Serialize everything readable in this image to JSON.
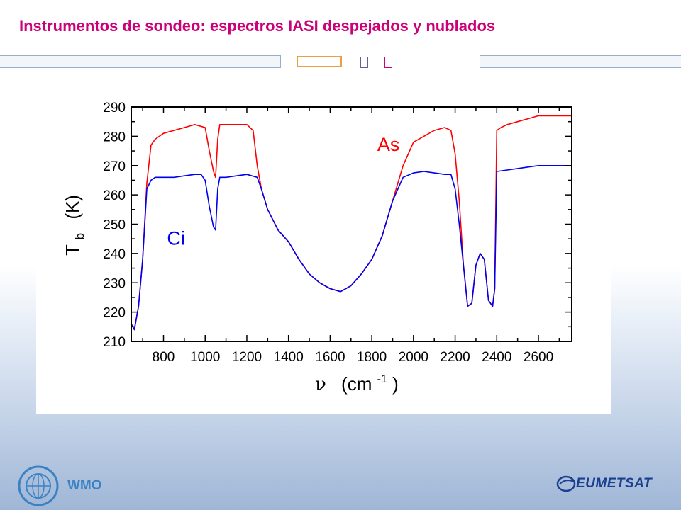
{
  "header": {
    "title": "Instrumentos de sondeo: espectros IASI despejados y nublados"
  },
  "footer": {
    "left_logo": "wmo-emblem-icon",
    "left_text": "WMO",
    "right_logo": "eumetsat-logo-icon",
    "right_text": "EUMETSAT"
  },
  "colors": {
    "title": "#cc0077",
    "as_series": "#ff0000",
    "ci_series": "#0000ee"
  },
  "chart_data": {
    "type": "line",
    "title": "",
    "xlabel": "ν",
    "xlabel_unit": "(cm",
    "xlabel_unit_exp": "-1",
    "xlabel_unit_close": ")",
    "ylabel": "T",
    "ylabel_sub": "b",
    "ylabel_unit": "(K)",
    "xlim": [
      645,
      2760
    ],
    "ylim": [
      210,
      290
    ],
    "xticks": [
      "800",
      "1000",
      "1200",
      "1400",
      "1600",
      "1800",
      "2000",
      "2200",
      "2400",
      "2600"
    ],
    "yticks": [
      "210",
      "220",
      "230",
      "240",
      "250",
      "260",
      "270",
      "280",
      "290"
    ],
    "grid": false,
    "legend": "none",
    "series": [
      {
        "name": "As",
        "color": "#ff0000",
        "x": [
          645,
          660,
          680,
          700,
          720,
          740,
          760,
          800,
          850,
          900,
          950,
          1000,
          1020,
          1040,
          1050,
          1060,
          1070,
          1100,
          1150,
          1200,
          1230,
          1250,
          1270,
          1300,
          1350,
          1400,
          1450,
          1500,
          1550,
          1600,
          1650,
          1700,
          1750,
          1800,
          1850,
          1900,
          1950,
          2000,
          2050,
          2100,
          2150,
          2180,
          2200,
          2220,
          2240,
          2260,
          2280,
          2300,
          2320,
          2340,
          2360,
          2380,
          2390,
          2400,
          2420,
          2450,
          2500,
          2550,
          2600,
          2650,
          2700,
          2760
        ],
        "y": [
          216,
          214,
          222,
          238,
          264,
          277,
          279,
          281,
          282,
          283,
          284,
          283,
          275,
          268,
          266,
          279,
          284,
          284,
          284,
          284,
          282,
          270,
          262,
          255,
          248,
          244,
          238,
          233,
          230,
          228,
          227,
          229,
          233,
          238,
          246,
          258,
          270,
          278,
          280,
          282,
          283,
          282,
          274,
          258,
          236,
          222,
          223,
          236,
          240,
          238,
          224,
          222,
          228,
          282,
          283,
          284,
          285,
          286,
          287,
          287,
          287,
          287
        ]
      },
      {
        "name": "Ci",
        "color": "#0000ee",
        "x": [
          645,
          660,
          680,
          700,
          720,
          740,
          760,
          800,
          850,
          900,
          950,
          980,
          1000,
          1020,
          1040,
          1050,
          1060,
          1070,
          1100,
          1150,
          1200,
          1250,
          1270,
          1300,
          1350,
          1400,
          1450,
          1500,
          1550,
          1600,
          1650,
          1700,
          1750,
          1800,
          1850,
          1900,
          1950,
          2000,
          2050,
          2100,
          2150,
          2180,
          2200,
          2220,
          2240,
          2260,
          2280,
          2300,
          2320,
          2340,
          2360,
          2380,
          2390,
          2400,
          2450,
          2500,
          2550,
          2600,
          2650,
          2700,
          2760
        ],
        "y": [
          216,
          214,
          222,
          238,
          262,
          265,
          266,
          266,
          266,
          266.5,
          267,
          267,
          265,
          256,
          249,
          248,
          262,
          266,
          266,
          266.5,
          267,
          266,
          262,
          255,
          248,
          244,
          238,
          233,
          230,
          228,
          227,
          229,
          233,
          238,
          246,
          258,
          266,
          267.5,
          268,
          267.5,
          267,
          267,
          262,
          250,
          236,
          222,
          223,
          236,
          240,
          238,
          224,
          222,
          228,
          268,
          268.5,
          269,
          269.5,
          270,
          270,
          270,
          270
        ]
      }
    ],
    "annotations": [
      {
        "text": "As",
        "x": 1880,
        "y": 275,
        "color": "#ff0000"
      },
      {
        "text": "Ci",
        "x": 860,
        "y": 243,
        "color": "#0000ee"
      }
    ]
  }
}
